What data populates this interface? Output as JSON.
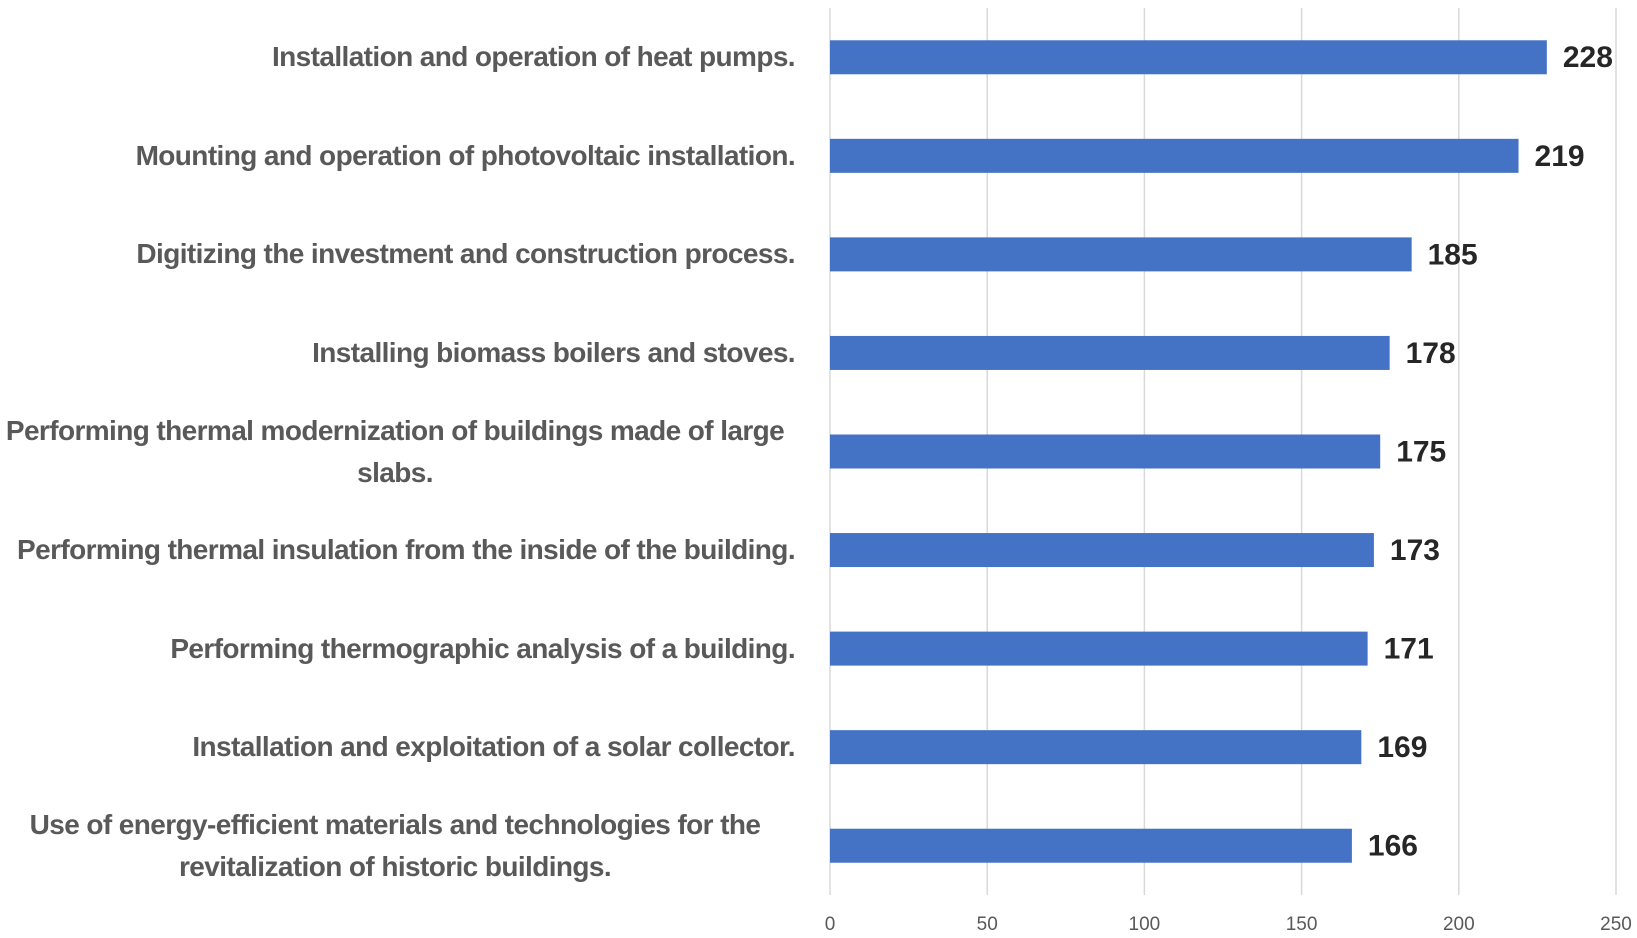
{
  "chart_data": {
    "type": "barh",
    "categories": [
      "Installation and operation of heat pumps.",
      "Mounting and operation of photovoltaic installation.",
      "Digitizing the investment and construction process.",
      "Installing biomass boilers and stoves.",
      "Performing thermal modernization of buildings made of large slabs.",
      "Performing thermal insulation from the inside of the building.",
      "Performing thermographic analysis of a building.",
      "Installation and exploitation of a solar collector.",
      "Use of energy-efficient materials and technologies for the revitalization of historic buildings."
    ],
    "values": [
      228,
      219,
      185,
      178,
      175,
      173,
      171,
      169,
      166
    ],
    "color": "#4472c4",
    "xlim": [
      0,
      250
    ],
    "xticks": [
      0,
      50,
      100,
      150,
      200,
      250
    ],
    "grid": true
  }
}
